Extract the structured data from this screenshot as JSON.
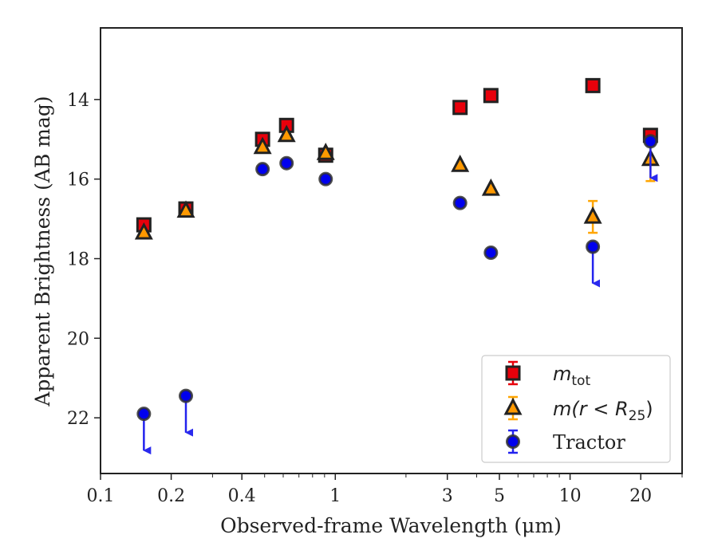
{
  "chart_data": {
    "type": "scatter",
    "xlabel": "Observed-frame Wavelength (μm)",
    "ylabel": "Apparent Brightness (AB mag)",
    "xscale": "log",
    "xlim": [
      0.1,
      30
    ],
    "ylim": [
      23.4,
      12.2
    ],
    "y_inverted": true,
    "x_ticks": [
      0.1,
      0.2,
      0.4,
      1,
      3,
      5,
      10,
      20
    ],
    "x_tick_labels": [
      "0.1",
      "0.2",
      "0.4",
      "1",
      "3",
      "5",
      "10",
      "20"
    ],
    "y_ticks": [
      14,
      16,
      18,
      20,
      22
    ],
    "y_tick_labels": [
      "14",
      "16",
      "18",
      "20",
      "22"
    ],
    "grid": false,
    "legend_position": "lower-right",
    "series": [
      {
        "name": "m_tot",
        "legend_label": "m",
        "legend_sub": "tot",
        "marker": "square",
        "color": "#e8000b",
        "errorbar_color": "#e8000b",
        "points": [
          {
            "x": 0.153,
            "y": 17.15,
            "err": 0.05
          },
          {
            "x": 0.231,
            "y": 16.75,
            "err": 0.05
          },
          {
            "x": 0.49,
            "y": 15.0,
            "err": 0.05
          },
          {
            "x": 0.62,
            "y": 14.65,
            "err": 0.05
          },
          {
            "x": 0.91,
            "y": 15.4,
            "err": 0.05
          },
          {
            "x": 3.4,
            "y": 14.2,
            "err": 0.05
          },
          {
            "x": 4.6,
            "y": 13.9,
            "err": 0.05
          },
          {
            "x": 12.5,
            "y": 13.65,
            "err": 0.05
          },
          {
            "x": 22.0,
            "y": 14.9,
            "err": 0.05
          }
        ]
      },
      {
        "name": "m(r < R25)",
        "legend_label": "m(r < R",
        "legend_sub": "25",
        "legend_close": ")",
        "marker": "triangle",
        "color": "#ff9900",
        "errorbar_color": "#ffa500",
        "points": [
          {
            "x": 0.153,
            "y": 17.35,
            "err": 0.05
          },
          {
            "x": 0.231,
            "y": 16.8,
            "err": 0.05
          },
          {
            "x": 0.49,
            "y": 15.2,
            "err": 0.05
          },
          {
            "x": 0.62,
            "y": 14.9,
            "err": 0.05
          },
          {
            "x": 0.91,
            "y": 15.35,
            "err": 0.05
          },
          {
            "x": 3.4,
            "y": 15.65,
            "err": 0.05
          },
          {
            "x": 4.6,
            "y": 16.25,
            "err": 0.05
          },
          {
            "x": 12.5,
            "y": 16.95,
            "err": 0.4
          },
          {
            "x": 22.0,
            "y": 15.5,
            "err": 0.55
          }
        ]
      },
      {
        "name": "Tractor",
        "legend_label": "Tractor",
        "marker": "circle",
        "color": "#0000ee",
        "errorbar_color": "#2222ee",
        "points": [
          {
            "x": 0.153,
            "y": 21.9,
            "upper_limit": true
          },
          {
            "x": 0.231,
            "y": 21.45,
            "upper_limit": true
          },
          {
            "x": 0.49,
            "y": 15.75
          },
          {
            "x": 0.62,
            "y": 15.6
          },
          {
            "x": 0.91,
            "y": 16.0
          },
          {
            "x": 3.4,
            "y": 16.6
          },
          {
            "x": 4.6,
            "y": 17.85
          },
          {
            "x": 12.5,
            "y": 17.7,
            "upper_limit": true
          },
          {
            "x": 22.0,
            "y": 15.05,
            "upper_limit": true
          }
        ]
      }
    ]
  }
}
